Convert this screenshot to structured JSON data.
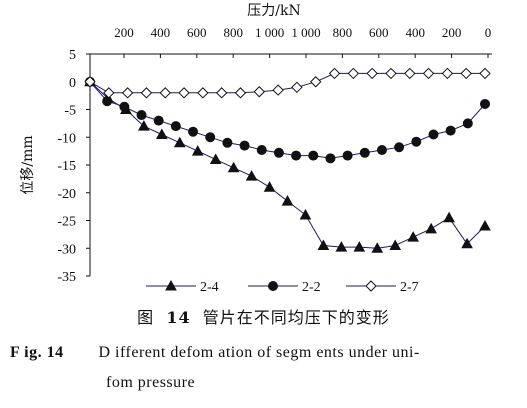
{
  "chart_data": {
    "type": "line",
    "top_axis_label": "压力/kN",
    "top_ticks": [
      "200",
      "400",
      "600",
      "800",
      "1 000",
      "1 000",
      "800",
      "600",
      "400",
      "200",
      "0"
    ],
    "ylabel": "位移/mm",
    "ylim": [
      -35,
      5
    ],
    "yticks": [
      5,
      0,
      -5,
      -10,
      -15,
      -20,
      -25,
      -30,
      -35
    ],
    "series": [
      {
        "name": "2-4",
        "marker": "filled-triangle",
        "color": "#1a1a6e",
        "values": [
          0,
          -3,
          -5,
          -8,
          -9.5,
          -11,
          -12.5,
          -14,
          -15.5,
          -17,
          -19,
          -21.5,
          -24,
          -29.5,
          -29.8,
          -29.8,
          -30,
          -29.5,
          -28,
          -26.5,
          -24.5,
          -29.2,
          -26
        ]
      },
      {
        "name": "2-2",
        "marker": "filled-circle",
        "color": "#1a1a6e",
        "values": [
          0,
          -3.5,
          -4.5,
          -6,
          -7,
          -8,
          -9,
          -10,
          -11,
          -11.5,
          -12.3,
          -12.8,
          -13.3,
          -13.3,
          -13.8,
          -13.3,
          -12.8,
          -12.3,
          -11.8,
          -10.8,
          -9.5,
          -8.8,
          -7.5,
          -4
        ]
      },
      {
        "name": "2-7",
        "marker": "open-diamond",
        "color": "#1a1a6e",
        "values": [
          0,
          -2,
          -2,
          -2,
          -2,
          -2,
          -2,
          -2,
          -2,
          -1.8,
          -1.5,
          -1,
          0,
          1.5,
          1.5,
          1.5,
          1.5,
          1.5,
          1.5,
          1.5,
          1.5,
          1.5
        ]
      }
    ]
  },
  "caption": {
    "cn_prefix": "图",
    "cn_num": "14",
    "cn_text": "管片在不同均压下的变形",
    "en_label": "F ig. 14",
    "en_line1": "D ifferent defom ation of segm ents under uni-",
    "en_line2": "fom pressure"
  }
}
